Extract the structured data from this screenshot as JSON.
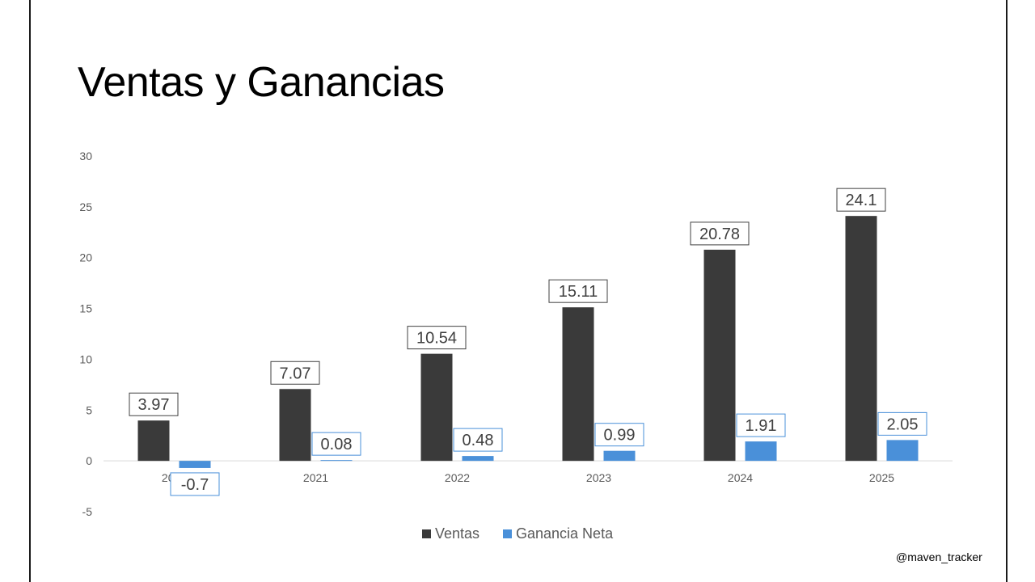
{
  "header": {
    "title": "Ventas y Ganancias"
  },
  "footer": {
    "credit": "@maven_tracker"
  },
  "chart_data": {
    "type": "bar",
    "title": "Ventas y Ganancias",
    "categories": [
      "2020",
      "2021",
      "2022",
      "2023",
      "2024",
      "2025"
    ],
    "series": [
      {
        "name": "Ventas",
        "color": "#3a3a3a",
        "values": [
          3.97,
          7.07,
          10.54,
          15.11,
          20.78,
          24.1
        ],
        "labels": [
          "3.97",
          "7.07",
          "10.54",
          "15.11",
          "20.78",
          "24.1"
        ]
      },
      {
        "name": "Ganancia Neta",
        "color": "#4a90d9",
        "values": [
          -0.7,
          0.08,
          0.48,
          0.99,
          1.91,
          2.05
        ],
        "labels": [
          "-0.7",
          "0.08",
          "0.48",
          "0.99",
          "1.91",
          "2.05"
        ]
      }
    ],
    "ylim": [
      -5,
      30
    ],
    "yticks": [
      "-5",
      "0",
      "5",
      "10",
      "15",
      "20",
      "25",
      "30"
    ],
    "legend": "bottom",
    "grid": false
  }
}
